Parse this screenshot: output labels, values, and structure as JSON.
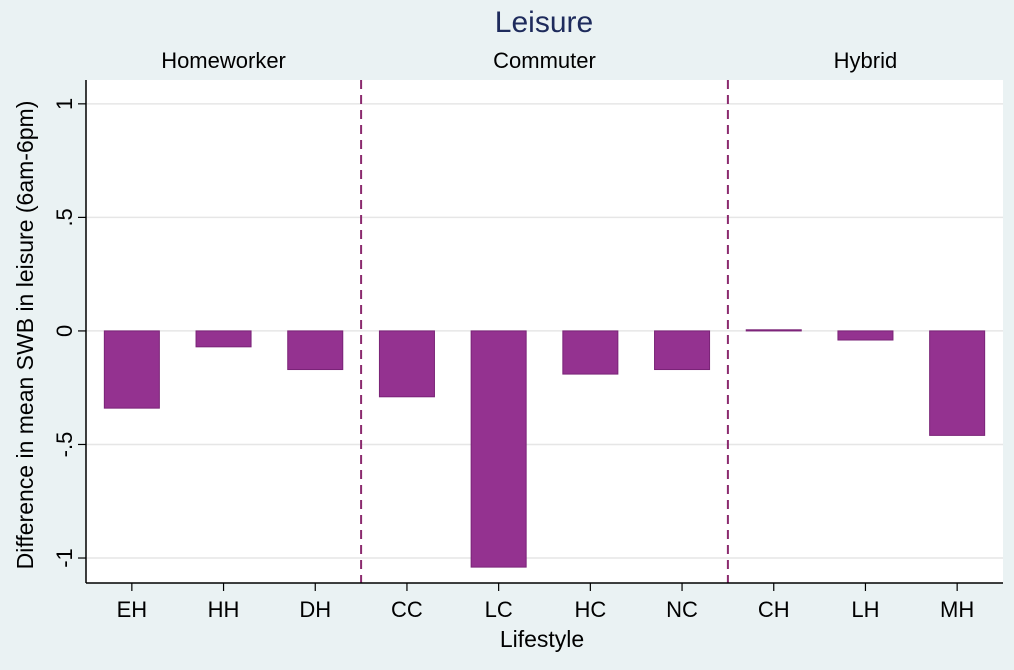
{
  "chart_data": {
    "type": "bar",
    "title": "Leisure",
    "group_labels": [
      "Homeworker",
      "Commuter",
      "Hybrid"
    ],
    "categories": [
      "EH",
      "HH",
      "DH",
      "CC",
      "LC",
      "HC",
      "NC",
      "CH",
      "LH",
      "MH"
    ],
    "values": [
      -0.34,
      -0.07,
      -0.17,
      -0.29,
      -1.04,
      -0.19,
      -0.17,
      0.005,
      -0.04,
      -0.46
    ],
    "color": "#943290",
    "x_label": "Lifestyle",
    "y_label": "Difference in mean SWB in leisure (6am-6pm)",
    "ylim": [
      -1.11,
      1.105
    ],
    "yticks": [
      -1,
      {
        "value": -0.5,
        "label": "-.5"
      },
      0,
      {
        "value": 0.5,
        "label": ".5"
      },
      1
    ],
    "grid": true
  }
}
